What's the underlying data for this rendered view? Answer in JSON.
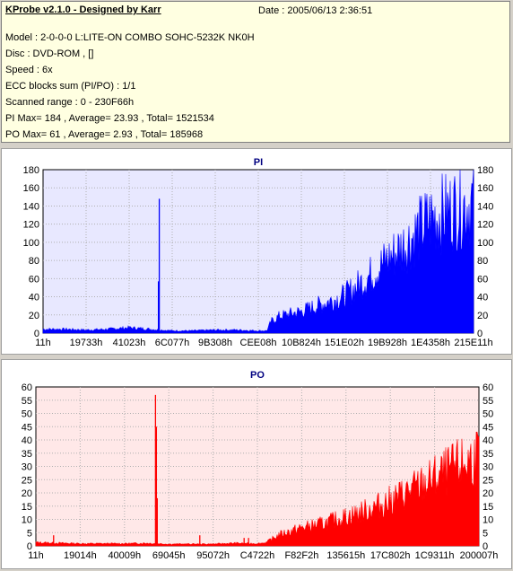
{
  "header": {
    "app_title": "KProbe v2.1.0 - Designed by Karr",
    "date": "Date : 2005/06/13 2:36:51",
    "lines": [
      "Model : 2-0-0-0 L:LITE-ON COMBO SOHC-5232K NK0H",
      "Disc : DVD-ROM ,  []",
      "Speed : 6x",
      "ECC blocks sum (PI/PO) : 1/1",
      "Scanned range : 0 - 230F66h",
      "PI Max= 184 , Average= 23.93 , Total= 1521534",
      "PO Max= 61 , Average= 2.93 , Total= 185968"
    ]
  },
  "chart_data": [
    {
      "type": "area",
      "title": "PI",
      "color": "#0000ff",
      "background": "#e8e8ff",
      "ylim": [
        0,
        180
      ],
      "yticks": [
        0,
        20,
        40,
        60,
        80,
        100,
        120,
        140,
        160,
        180
      ],
      "xticks": [
        "11h",
        "19733h",
        "41023h",
        "6C077h",
        "9B308h",
        "CEE08h",
        "10B824h",
        "151E02h",
        "19B928h",
        "1E4358h",
        "215E11h"
      ],
      "x_range": [
        0,
        100
      ],
      "envelope": [
        [
          0,
          5
        ],
        [
          5,
          5
        ],
        [
          10,
          4
        ],
        [
          15,
          5
        ],
        [
          20,
          7
        ],
        [
          25,
          5
        ],
        [
          30,
          3
        ],
        [
          35,
          3
        ],
        [
          40,
          4
        ],
        [
          45,
          4
        ],
        [
          50,
          3
        ],
        [
          52,
          3
        ],
        [
          53,
          15
        ],
        [
          55,
          22
        ],
        [
          60,
          28
        ],
        [
          65,
          38
        ],
        [
          70,
          48
        ],
        [
          75,
          70
        ],
        [
          80,
          95
        ],
        [
          85,
          120
        ],
        [
          90,
          148
        ],
        [
          95,
          160
        ],
        [
          100,
          170
        ]
      ],
      "spikes": [
        [
          27,
          148
        ],
        [
          26.8,
          57
        ]
      ],
      "grid": true,
      "legend": "none"
    },
    {
      "type": "area",
      "title": "PO",
      "color": "#ff0000",
      "background": "#ffe8e8",
      "ylim": [
        0,
        60
      ],
      "yticks": [
        0,
        5,
        10,
        15,
        20,
        25,
        30,
        35,
        40,
        45,
        50,
        55,
        60
      ],
      "xticks": [
        "11h",
        "19014h",
        "40009h",
        "69045h",
        "95072h",
        "C4722h",
        "F82F2h",
        "135615h",
        "17C802h",
        "1C9311h",
        "200007h"
      ],
      "x_range": [
        0,
        100
      ],
      "envelope": [
        [
          0,
          1.5
        ],
        [
          10,
          1
        ],
        [
          20,
          1
        ],
        [
          25,
          1.2
        ],
        [
          30,
          0.8
        ],
        [
          40,
          0.8
        ],
        [
          45,
          1.2
        ],
        [
          50,
          1
        ],
        [
          52,
          1.5
        ],
        [
          55,
          5
        ],
        [
          60,
          8
        ],
        [
          65,
          10
        ],
        [
          70,
          13
        ],
        [
          75,
          16
        ],
        [
          80,
          20
        ],
        [
          85,
          25
        ],
        [
          90,
          30
        ],
        [
          95,
          35
        ],
        [
          100,
          40
        ]
      ],
      "spikes": [
        [
          27,
          57
        ],
        [
          27.2,
          45
        ],
        [
          27.4,
          18
        ],
        [
          4,
          4
        ],
        [
          47,
          3
        ],
        [
          48,
          3
        ],
        [
          37,
          4
        ]
      ],
      "grid": true,
      "legend": "none"
    }
  ]
}
